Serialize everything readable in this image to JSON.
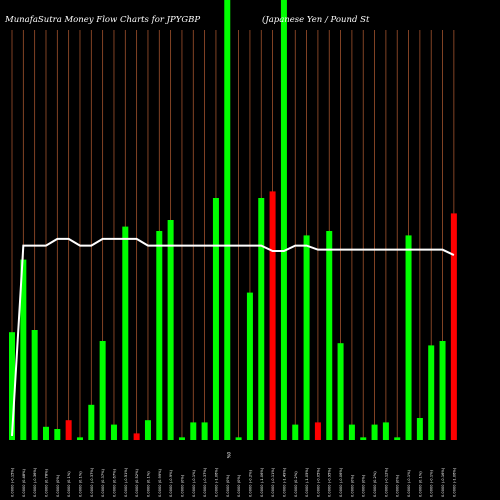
{
  "chart_data": {
    "type": "bar",
    "title": "MunafaSutra  Money Flow  Charts for JPYGBP",
    "subtitle": "(Japanese  Yen  / Pound St",
    "colors": {
      "background": "#000000",
      "gridline": "#a0522d",
      "up": "#00ff00",
      "down": "#ff0000",
      "overlay_line": "#ffffff"
    },
    "grid": true,
    "bar_ylim": [
      0,
      100
    ],
    "line_ylim": [
      0,
      100
    ],
    "axis_note": "0%",
    "bars": [
      {
        "value": 24.5,
        "color": "up",
        "label": "0.0000 (-0.15%)"
      },
      {
        "value": 41.0,
        "color": "up",
        "label": "0.0000 (0.48%)"
      },
      {
        "value": 25.0,
        "color": "up",
        "label": "0.0000 (-0.36%)"
      },
      {
        "value": 3.0,
        "color": "up",
        "label": "0.0000 (0.78%)"
      },
      {
        "value": 2.5,
        "color": "up",
        "label": "0.0000 (0%)"
      },
      {
        "value": 4.5,
        "color": "down",
        "label": "0.0000 (0.1%)"
      },
      {
        "value": 0.6,
        "color": "up",
        "label": "0.0000 (0.1%)"
      },
      {
        "value": 8.0,
        "color": "up",
        "label": "0.0000 (-0.37%)"
      },
      {
        "value": 22.5,
        "color": "up",
        "label": "0.0000 (0.37%)"
      },
      {
        "value": 3.5,
        "color": "up",
        "label": "0.0000 (0.67%)"
      },
      {
        "value": 48.5,
        "color": "up",
        "label": "0.0000 (-0.51%)"
      },
      {
        "value": 1.5,
        "color": "down",
        "label": "0.0000 (0.52%)"
      },
      {
        "value": 4.5,
        "color": "up",
        "label": "0.0000 (0.1%)"
      },
      {
        "value": 47.5,
        "color": "up",
        "label": "0.0000 (0.99%)"
      },
      {
        "value": 50.0,
        "color": "up",
        "label": "0.0000 (-0.9%)"
      },
      {
        "value": 0.6,
        "color": "up",
        "label": "0.0000 (0%)"
      },
      {
        "value": 4.0,
        "color": "up",
        "label": "0.0000 (-0.1%)"
      },
      {
        "value": 4.0,
        "color": "up",
        "label": "0.0000 (-0.37%)"
      },
      {
        "value": 55.0,
        "color": "up",
        "label": "0.0000 (-1.06%)"
      },
      {
        "value": 100,
        "color": "up",
        "label": "0.0000 (0%)"
      },
      {
        "value": 0.6,
        "color": "up",
        "label": "0.0000 (0%)"
      },
      {
        "value": 33.5,
        "color": "up",
        "label": "0.0000 (-0.2%)"
      },
      {
        "value": 55.0,
        "color": "up",
        "label": "0.0000 (-1.06%)"
      },
      {
        "value": 56.5,
        "color": "down",
        "label": "0.0000 (-0.11%)"
      },
      {
        "value": 100,
        "color": "up",
        "label": "0.0000 (-1.49%)"
      },
      {
        "value": 3.5,
        "color": "up",
        "label": "0.0000 (0.2%)"
      },
      {
        "value": 46.5,
        "color": "up",
        "label": "0.0000 (-1.05%)"
      },
      {
        "value": 4.0,
        "color": "down",
        "label": "0.0000 (-0.05%)"
      },
      {
        "value": 47.5,
        "color": "up",
        "label": "0.0000 (-0.95%)"
      },
      {
        "value": 22.0,
        "color": "up",
        "label": "0.0000 (-0.06%)"
      },
      {
        "value": 3.5,
        "color": "up",
        "label": "0.0000 (0%)"
      },
      {
        "value": 0.6,
        "color": "up",
        "label": "0.0000 (0%)"
      },
      {
        "value": 3.5,
        "color": "up",
        "label": "0.0000 (0.2%)"
      },
      {
        "value": 4.0,
        "color": "up",
        "label": "0.0000 (-0.12%)"
      },
      {
        "value": 0.6,
        "color": "up",
        "label": "0.0000 (0%)"
      },
      {
        "value": 46.5,
        "color": "up",
        "label": "0.0000 (-0.1%)"
      },
      {
        "value": 5.0,
        "color": "up",
        "label": "0.0000 (0.1%)"
      },
      {
        "value": 21.5,
        "color": "up",
        "label": "0.0000 (-0.1%)"
      },
      {
        "value": 22.5,
        "color": "up",
        "label": "0.0000 (-0.16%)"
      },
      {
        "value": 51.5,
        "color": "down",
        "label": "0.0000 (-1.06%)"
      }
    ],
    "overlay_line": [
      1.5,
      72,
      72,
      72,
      74.5,
      74.5,
      72,
      72,
      74.5,
      74.5,
      74.5,
      74.5,
      72,
      72,
      72,
      72,
      72,
      72,
      72,
      72,
      72,
      72,
      72,
      70,
      70,
      72,
      72,
      70.5,
      70.5,
      70.5,
      70.5,
      70.5,
      70.5,
      70.5,
      70.5,
      70.5,
      70.5,
      70.5,
      70.5,
      68.5
    ]
  }
}
